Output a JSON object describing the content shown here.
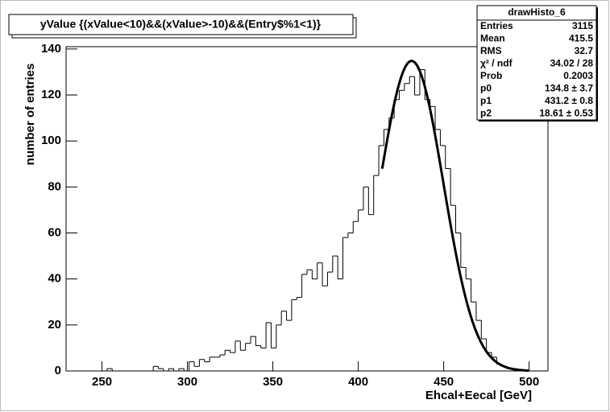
{
  "chart_data": {
    "type": "histogram",
    "title": "yValue {(xValue<10)&&(xValue>-10)&&(Entry$%1<1)}",
    "x_label": "Ehcal+Eecal [GeV]",
    "y_label": "number of entries",
    "xlim": [
      229,
      511
    ],
    "ylim": [
      0,
      141
    ],
    "xticks": [
      250,
      300,
      350,
      400,
      450,
      500
    ],
    "yticks": [
      0,
      20,
      40,
      60,
      80,
      100,
      120,
      140
    ],
    "bins": [
      229,
      232,
      235,
      238,
      241,
      244,
      247,
      250,
      253,
      256,
      259,
      262,
      265,
      268,
      271,
      274,
      277,
      280,
      283,
      286,
      289,
      292,
      295,
      298,
      301,
      304,
      307,
      310,
      313,
      316,
      319,
      322,
      325,
      328,
      331,
      334,
      337,
      340,
      343,
      346,
      349,
      352,
      355,
      358,
      361,
      364,
      367,
      370,
      373,
      376,
      379,
      382,
      385,
      388,
      391,
      394,
      397,
      400,
      403,
      406,
      409,
      412,
      415,
      418,
      421,
      424,
      427,
      430,
      433,
      436,
      439,
      442,
      445,
      448,
      451,
      454,
      457,
      460,
      463,
      466,
      469,
      472,
      475,
      478,
      481,
      484,
      487,
      490,
      493,
      496,
      499,
      502,
      505,
      508,
      511
    ],
    "values": [
      0,
      0,
      0,
      0,
      0,
      0,
      0,
      0,
      1,
      0,
      0,
      0,
      0,
      0,
      0,
      0,
      0,
      2,
      1,
      0,
      1,
      0,
      1,
      0,
      4,
      2,
      5,
      4,
      6,
      6,
      7,
      9,
      8,
      13,
      9,
      12,
      15,
      11,
      10,
      21,
      10,
      20,
      26,
      22,
      31,
      32,
      42,
      44,
      40,
      47,
      37,
      43,
      50,
      40,
      58,
      60,
      65,
      70,
      80,
      68,
      85,
      98,
      105,
      110,
      118,
      122,
      125,
      128,
      120,
      131,
      118,
      115,
      105,
      98,
      88,
      72,
      60,
      45,
      40,
      30,
      22,
      14,
      8,
      6,
      3,
      2,
      1,
      1,
      0,
      0,
      0,
      0,
      0,
      0
    ],
    "color": "#000000",
    "fit": {
      "p0": 134.8,
      "p1": 431.2,
      "p2": 18.61,
      "range": [
        414,
        500
      ]
    },
    "stats": {
      "title": "drawHisto_6",
      "rows": [
        [
          "Entries",
          "3115"
        ],
        [
          "Mean",
          "415.5"
        ],
        [
          "RMS",
          "32.7"
        ],
        [
          "χ² / ndf",
          "34.02 / 28"
        ],
        [
          "Prob",
          "0.2003"
        ],
        [
          "p0",
          "134.8 ± 3.7"
        ],
        [
          "p1",
          "431.2 ± 0.8"
        ],
        [
          "p2",
          "18.61 ± 0.53"
        ]
      ]
    }
  }
}
